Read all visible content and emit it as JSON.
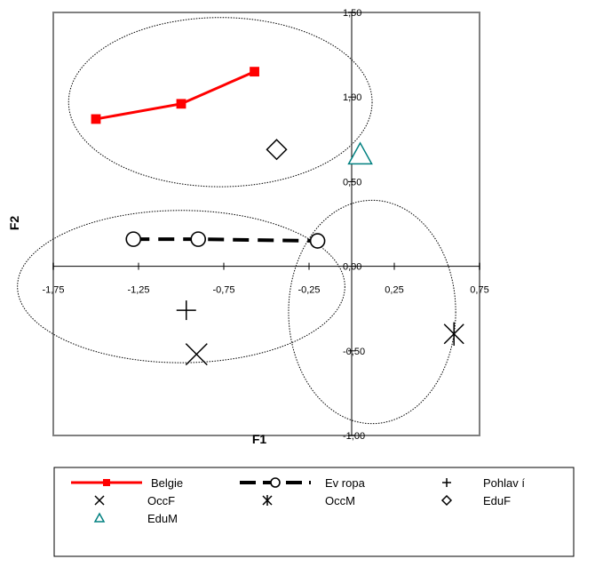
{
  "chart_data": {
    "type": "scatter",
    "title": "",
    "xlabel": "F1",
    "ylabel": "F2",
    "xlim": [
      -1.75,
      0.75
    ],
    "ylim": [
      -1.0,
      1.5
    ],
    "x_ticks": [
      -1.75,
      -1.25,
      -0.75,
      -0.25,
      0.25,
      0.75
    ],
    "x_tick_labels": [
      "-1,75",
      "-1,25",
      "-0,75",
      "-0,25",
      "0,25",
      "0,75"
    ],
    "y_ticks": [
      -1.0,
      -0.5,
      0.0,
      0.5,
      1.0,
      1.5
    ],
    "y_tick_labels": [
      "-1,00",
      "-0,50",
      "0,00",
      "0,50",
      "1,00",
      "1,50"
    ],
    "grid": false,
    "legend_position": "bottom",
    "series": [
      {
        "name": "Belgie",
        "kind": "line",
        "marker": "square-filled",
        "color": "#ff0000",
        "x": [
          -1.5,
          -1.0,
          -0.57
        ],
        "y": [
          0.87,
          0.96,
          1.15
        ]
      },
      {
        "name": "Ev ropa",
        "kind": "line-dashed",
        "marker": "circle-open",
        "color": "#000000",
        "x": [
          -1.28,
          -0.9,
          -0.2
        ],
        "y": [
          0.16,
          0.16,
          0.15
        ]
      },
      {
        "name": "Pohlav í",
        "kind": "points",
        "marker": "plus",
        "color": "#000000",
        "x": [
          -0.97
        ],
        "y": [
          -0.26
        ]
      },
      {
        "name": "OccF",
        "kind": "points",
        "marker": "x",
        "color": "#000000",
        "x": [
          -0.91
        ],
        "y": [
          -0.52
        ]
      },
      {
        "name": "OccM",
        "kind": "points",
        "marker": "asterisk",
        "color": "#000000",
        "x": [
          0.6
        ],
        "y": [
          -0.4
        ]
      },
      {
        "name": "EduF",
        "kind": "points",
        "marker": "diamond-open",
        "color": "#000000",
        "x": [
          -0.44
        ],
        "y": [
          0.69
        ]
      },
      {
        "name": "EduM",
        "kind": "points",
        "marker": "triangle-open",
        "color": "#008080",
        "x": [
          0.05
        ],
        "y": [
          0.66
        ]
      }
    ],
    "ellipses": [
      {
        "cx": -0.77,
        "cy": 0.97,
        "rx": 0.89,
        "ry": 0.5
      },
      {
        "cx": -1.0,
        "cy": -0.12,
        "rx": 0.96,
        "ry": 0.45
      },
      {
        "cx": 0.12,
        "cy": -0.27,
        "rx": 0.49,
        "ry": 0.66
      }
    ]
  }
}
